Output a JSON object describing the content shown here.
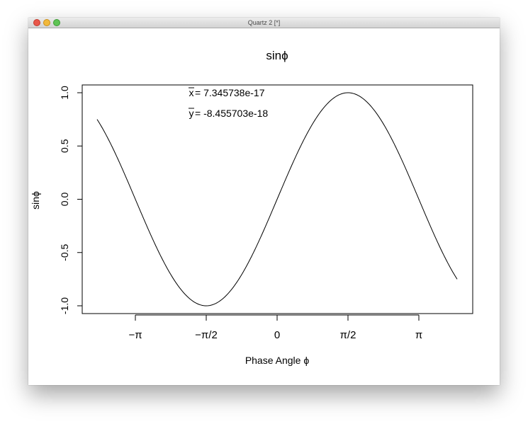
{
  "window": {
    "title": "Quartz 2 [*]",
    "traffic_lights": [
      "close",
      "minimize",
      "zoom"
    ]
  },
  "chart_data": {
    "type": "line",
    "title": "sinϕ",
    "xlabel": "Phase Angle ϕ",
    "ylabel": "sinϕ",
    "function": "sin(x)",
    "xlim": [
      -3.6,
      3.6
    ],
    "ylim": [
      -1.0,
      1.0
    ],
    "x_ticks": [
      {
        "value": -3.14159,
        "label": "−π"
      },
      {
        "value": -1.5708,
        "label": "−π/2"
      },
      {
        "value": 0,
        "label": "0"
      },
      {
        "value": 1.5708,
        "label": "π/2"
      },
      {
        "value": 3.14159,
        "label": "π"
      }
    ],
    "y_ticks": [
      {
        "value": -1.0,
        "label": "-1.0"
      },
      {
        "value": -0.5,
        "label": "-0.5"
      },
      {
        "value": 0.0,
        "label": "0.0"
      },
      {
        "value": 0.5,
        "label": "0.5"
      },
      {
        "value": 1.0,
        "label": "1.0"
      }
    ],
    "annotations": [
      {
        "symbol": "x",
        "text": " = 7.345738e-17"
      },
      {
        "symbol": "y",
        "text": " = -8.455703e-18"
      }
    ],
    "series": [
      {
        "x": [
          -3.99,
          -3.6,
          -3.14159,
          -2.6,
          -2.0,
          -1.5708,
          -1.0,
          -0.5,
          0.0,
          0.5,
          1.0,
          1.5708,
          2.0,
          2.6,
          3.14159,
          3.6,
          3.99
        ],
        "values": [
          0.756,
          0.443,
          0.0,
          -0.516,
          -0.909,
          -1.0,
          -0.841,
          -0.479,
          0.0,
          0.479,
          0.841,
          1.0,
          0.909,
          0.516,
          0.0,
          -0.443,
          -0.756
        ]
      }
    ],
    "line_color": "#000000",
    "grid": false,
    "legend": "none"
  }
}
